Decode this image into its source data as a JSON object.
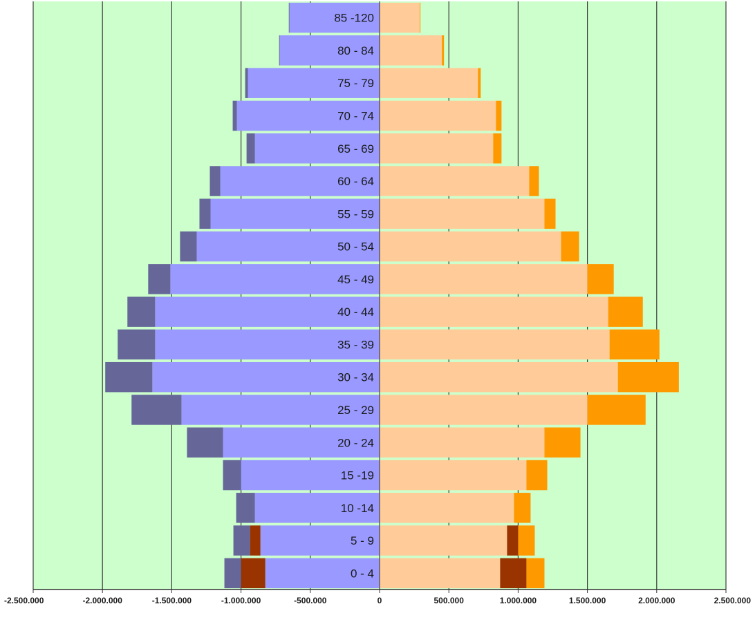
{
  "chart_data": {
    "type": "bar",
    "orientation": "horizontal",
    "chart_style": "population-pyramid",
    "categories": [
      "0 - 4",
      "5 - 9",
      "10 -14",
      "15 -19",
      "20 - 24",
      "25 - 29",
      "30 - 34",
      "35 - 39",
      "40 - 44",
      "45 - 49",
      "50 - 54",
      "55 - 59",
      "60 - 64",
      "65 - 69",
      "70 - 74",
      "75 - 79",
      "80 - 84",
      "85 -120"
    ],
    "stacking": "segments stack outward from zero",
    "series": [
      {
        "side": "left",
        "color": "#9999ff",
        "values": [
          -825000,
          -860000,
          -900000,
          -1000000,
          -1130000,
          -1430000,
          -1640000,
          -1620000,
          -1620000,
          -1510000,
          -1320000,
          -1220000,
          -1150000,
          -900000,
          -1030000,
          -950000,
          -720000,
          -650000
        ]
      },
      {
        "side": "left",
        "color": "#993300",
        "values": [
          -175000,
          -75000,
          0,
          0,
          0,
          0,
          0,
          0,
          0,
          0,
          0,
          0,
          0,
          0,
          0,
          0,
          0,
          0
        ]
      },
      {
        "side": "left",
        "color": "#666699",
        "values": [
          -120000,
          -120000,
          -135000,
          -130000,
          -260000,
          -360000,
          -340000,
          -270000,
          -200000,
          -160000,
          -120000,
          -80000,
          -75000,
          -60000,
          -30000,
          -20000,
          -5000,
          -5000
        ]
      },
      {
        "side": "right",
        "color": "#ffcc99",
        "values": [
          870000,
          920000,
          970000,
          1060000,
          1190000,
          1500000,
          1720000,
          1660000,
          1650000,
          1500000,
          1310000,
          1190000,
          1080000,
          820000,
          840000,
          710000,
          450000,
          290000
        ]
      },
      {
        "side": "right",
        "color": "#993300",
        "values": [
          190000,
          80000,
          0,
          0,
          0,
          0,
          0,
          0,
          0,
          0,
          0,
          0,
          0,
          0,
          0,
          0,
          0,
          0
        ]
      },
      {
        "side": "right",
        "color": "#ff9900",
        "values": [
          130000,
          120000,
          120000,
          150000,
          260000,
          420000,
          440000,
          360000,
          250000,
          190000,
          130000,
          80000,
          70000,
          60000,
          40000,
          20000,
          15000,
          5000
        ]
      }
    ],
    "xlim": [
      -2500000,
      2500000
    ],
    "xticks": [
      -2500000,
      -2000000,
      -1500000,
      -1000000,
      -500000,
      0,
      500000,
      1000000,
      1500000,
      2000000,
      2500000
    ],
    "xtick_labels": [
      "-2.500.000",
      "-2.000.000",
      "-1.500.000",
      "-1.000.000",
      "-500.000",
      "0",
      "500.000",
      "1.000.000",
      "1.500.000",
      "2.000.000",
      "2.500.000"
    ],
    "category_labels_position": "inside bars, left of center axis",
    "vertical_grid": true,
    "plot_background": "#ccffcc",
    "legend": "none"
  }
}
